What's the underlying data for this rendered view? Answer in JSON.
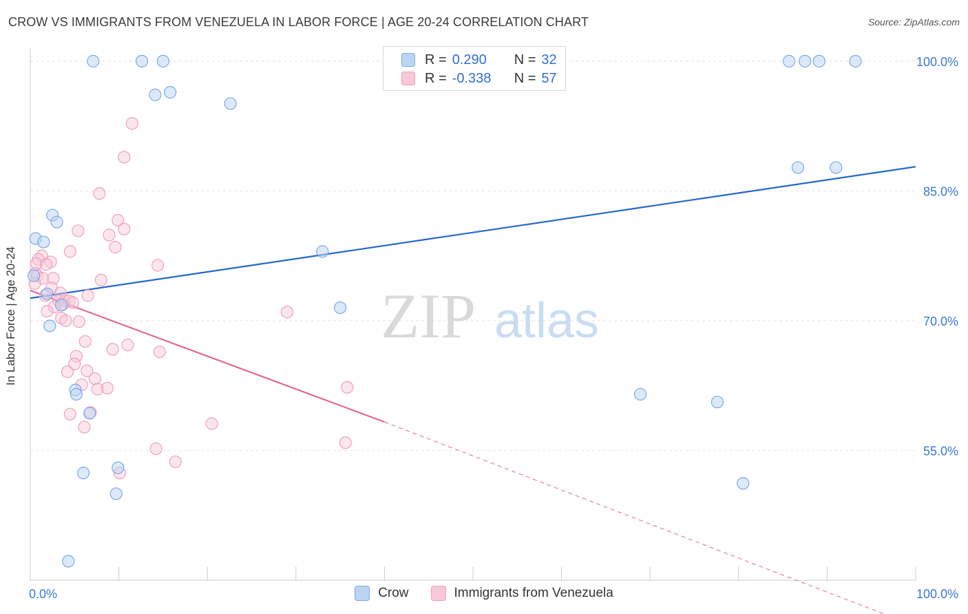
{
  "title": "CROW VS IMMIGRANTS FROM VENEZUELA IN LABOR FORCE | AGE 20-24 CORRELATION CHART",
  "source": "Source: ZipAtlas.com",
  "watermark": {
    "zip": "ZIP",
    "atlas": "atlas"
  },
  "legend": {
    "rows": [
      {
        "r_label": "R =",
        "r_value": "0.290",
        "n_label": "N =",
        "n_value": "32"
      },
      {
        "r_label": "R =",
        "r_value": "-0.338",
        "n_label": "N =",
        "n_value": "57"
      }
    ]
  },
  "chart_data": {
    "type": "scatter",
    "title": "CROW VS IMMIGRANTS FROM VENEZUELA IN LABOR FORCE | AGE 20-24 CORRELATION CHART",
    "xlabel": "",
    "ylabel": "In Labor Force | Age 20-24",
    "xlim": [
      0,
      100
    ],
    "ylim": [
      40,
      101.5
    ],
    "x_tick_labels": [
      "0.0%",
      "100.0%"
    ],
    "y_ticks": [
      55,
      70,
      85,
      100
    ],
    "y_tick_labels": [
      "55.0%",
      "70.0%",
      "85.0%",
      "100.0%"
    ],
    "grid": true,
    "legend_position": "top-center",
    "colors": {
      "crow": "#7aaae8",
      "crow_line": "#2266cc",
      "venezuela": "#f0a0bc",
      "venezuela_line": "#e06890"
    },
    "series": [
      {
        "name": "Crow",
        "r": 0.29,
        "n": 32,
        "trend": {
          "x0": 0,
          "y0": 72.6,
          "x1": 100,
          "y1": 87.8
        },
        "points": [
          [
            7.1,
            100
          ],
          [
            12.6,
            100
          ],
          [
            15.0,
            100
          ],
          [
            85.7,
            100
          ],
          [
            87.5,
            100
          ],
          [
            89.1,
            100
          ],
          [
            93.2,
            100
          ],
          [
            14.1,
            96.1
          ],
          [
            15.8,
            96.4
          ],
          [
            22.6,
            95.1
          ],
          [
            86.7,
            87.7
          ],
          [
            91.0,
            87.7
          ],
          [
            2.5,
            82.2
          ],
          [
            3.0,
            81.4
          ],
          [
            0.6,
            79.5
          ],
          [
            1.5,
            79.1
          ],
          [
            33.0,
            78.0
          ],
          [
            0.4,
            75.2
          ],
          [
            1.9,
            73.1
          ],
          [
            3.5,
            71.8
          ],
          [
            35.0,
            71.5
          ],
          [
            2.2,
            69.4
          ],
          [
            5.1,
            62.0
          ],
          [
            5.2,
            61.5
          ],
          [
            6.7,
            59.3
          ],
          [
            68.9,
            61.5
          ],
          [
            77.6,
            60.6
          ],
          [
            9.9,
            53.0
          ],
          [
            6.0,
            52.4
          ],
          [
            9.7,
            50.0
          ],
          [
            80.5,
            51.2
          ],
          [
            4.3,
            42.2
          ]
        ]
      },
      {
        "name": "Immigrants from Venezuela",
        "r": -0.338,
        "n": 57,
        "trend": {
          "x0": 0,
          "y0": 73.5,
          "x1": 40,
          "y1": 58.3,
          "dash_to_x": 100,
          "dash_to_y": 34.7
        },
        "points": [
          [
            11.5,
            92.8
          ],
          [
            10.6,
            88.9
          ],
          [
            7.8,
            84.7
          ],
          [
            9.9,
            81.6
          ],
          [
            10.6,
            80.6
          ],
          [
            5.4,
            80.4
          ],
          [
            8.9,
            79.9
          ],
          [
            9.6,
            78.5
          ],
          [
            4.5,
            78.0
          ],
          [
            1.3,
            77.5
          ],
          [
            0.9,
            77.1
          ],
          [
            2.3,
            76.8
          ],
          [
            0.7,
            76.6
          ],
          [
            1.8,
            76.5
          ],
          [
            14.4,
            76.4
          ],
          [
            0.6,
            75.5
          ],
          [
            0.8,
            75.2
          ],
          [
            1.4,
            74.9
          ],
          [
            2.6,
            74.9
          ],
          [
            8.0,
            74.7
          ],
          [
            0.5,
            74.3
          ],
          [
            2.4,
            73.8
          ],
          [
            3.4,
            73.2
          ],
          [
            1.7,
            72.9
          ],
          [
            6.5,
            72.9
          ],
          [
            3.2,
            72.3
          ],
          [
            3.9,
            72.3
          ],
          [
            4.4,
            72.3
          ],
          [
            4.8,
            72.1
          ],
          [
            3.7,
            71.9
          ],
          [
            2.7,
            71.6
          ],
          [
            1.9,
            71.1
          ],
          [
            29.0,
            71.0
          ],
          [
            3.5,
            70.3
          ],
          [
            4.0,
            70.0
          ],
          [
            5.5,
            69.9
          ],
          [
            6.2,
            67.6
          ],
          [
            11.0,
            67.2
          ],
          [
            9.3,
            66.7
          ],
          [
            14.6,
            66.4
          ],
          [
            5.2,
            65.9
          ],
          [
            5.0,
            65.0
          ],
          [
            4.2,
            64.1
          ],
          [
            6.4,
            64.2
          ],
          [
            7.3,
            63.3
          ],
          [
            5.8,
            62.6
          ],
          [
            7.6,
            62.1
          ],
          [
            8.7,
            62.2
          ],
          [
            35.8,
            62.3
          ],
          [
            4.5,
            59.2
          ],
          [
            6.8,
            59.4
          ],
          [
            6.1,
            57.7
          ],
          [
            20.5,
            58.1
          ],
          [
            35.6,
            55.9
          ],
          [
            14.2,
            55.2
          ],
          [
            16.4,
            53.7
          ],
          [
            10.1,
            52.4
          ]
        ]
      }
    ]
  },
  "bottom_legend": [
    {
      "label": "Crow"
    },
    {
      "label": "Immigrants from Venezuela"
    }
  ]
}
